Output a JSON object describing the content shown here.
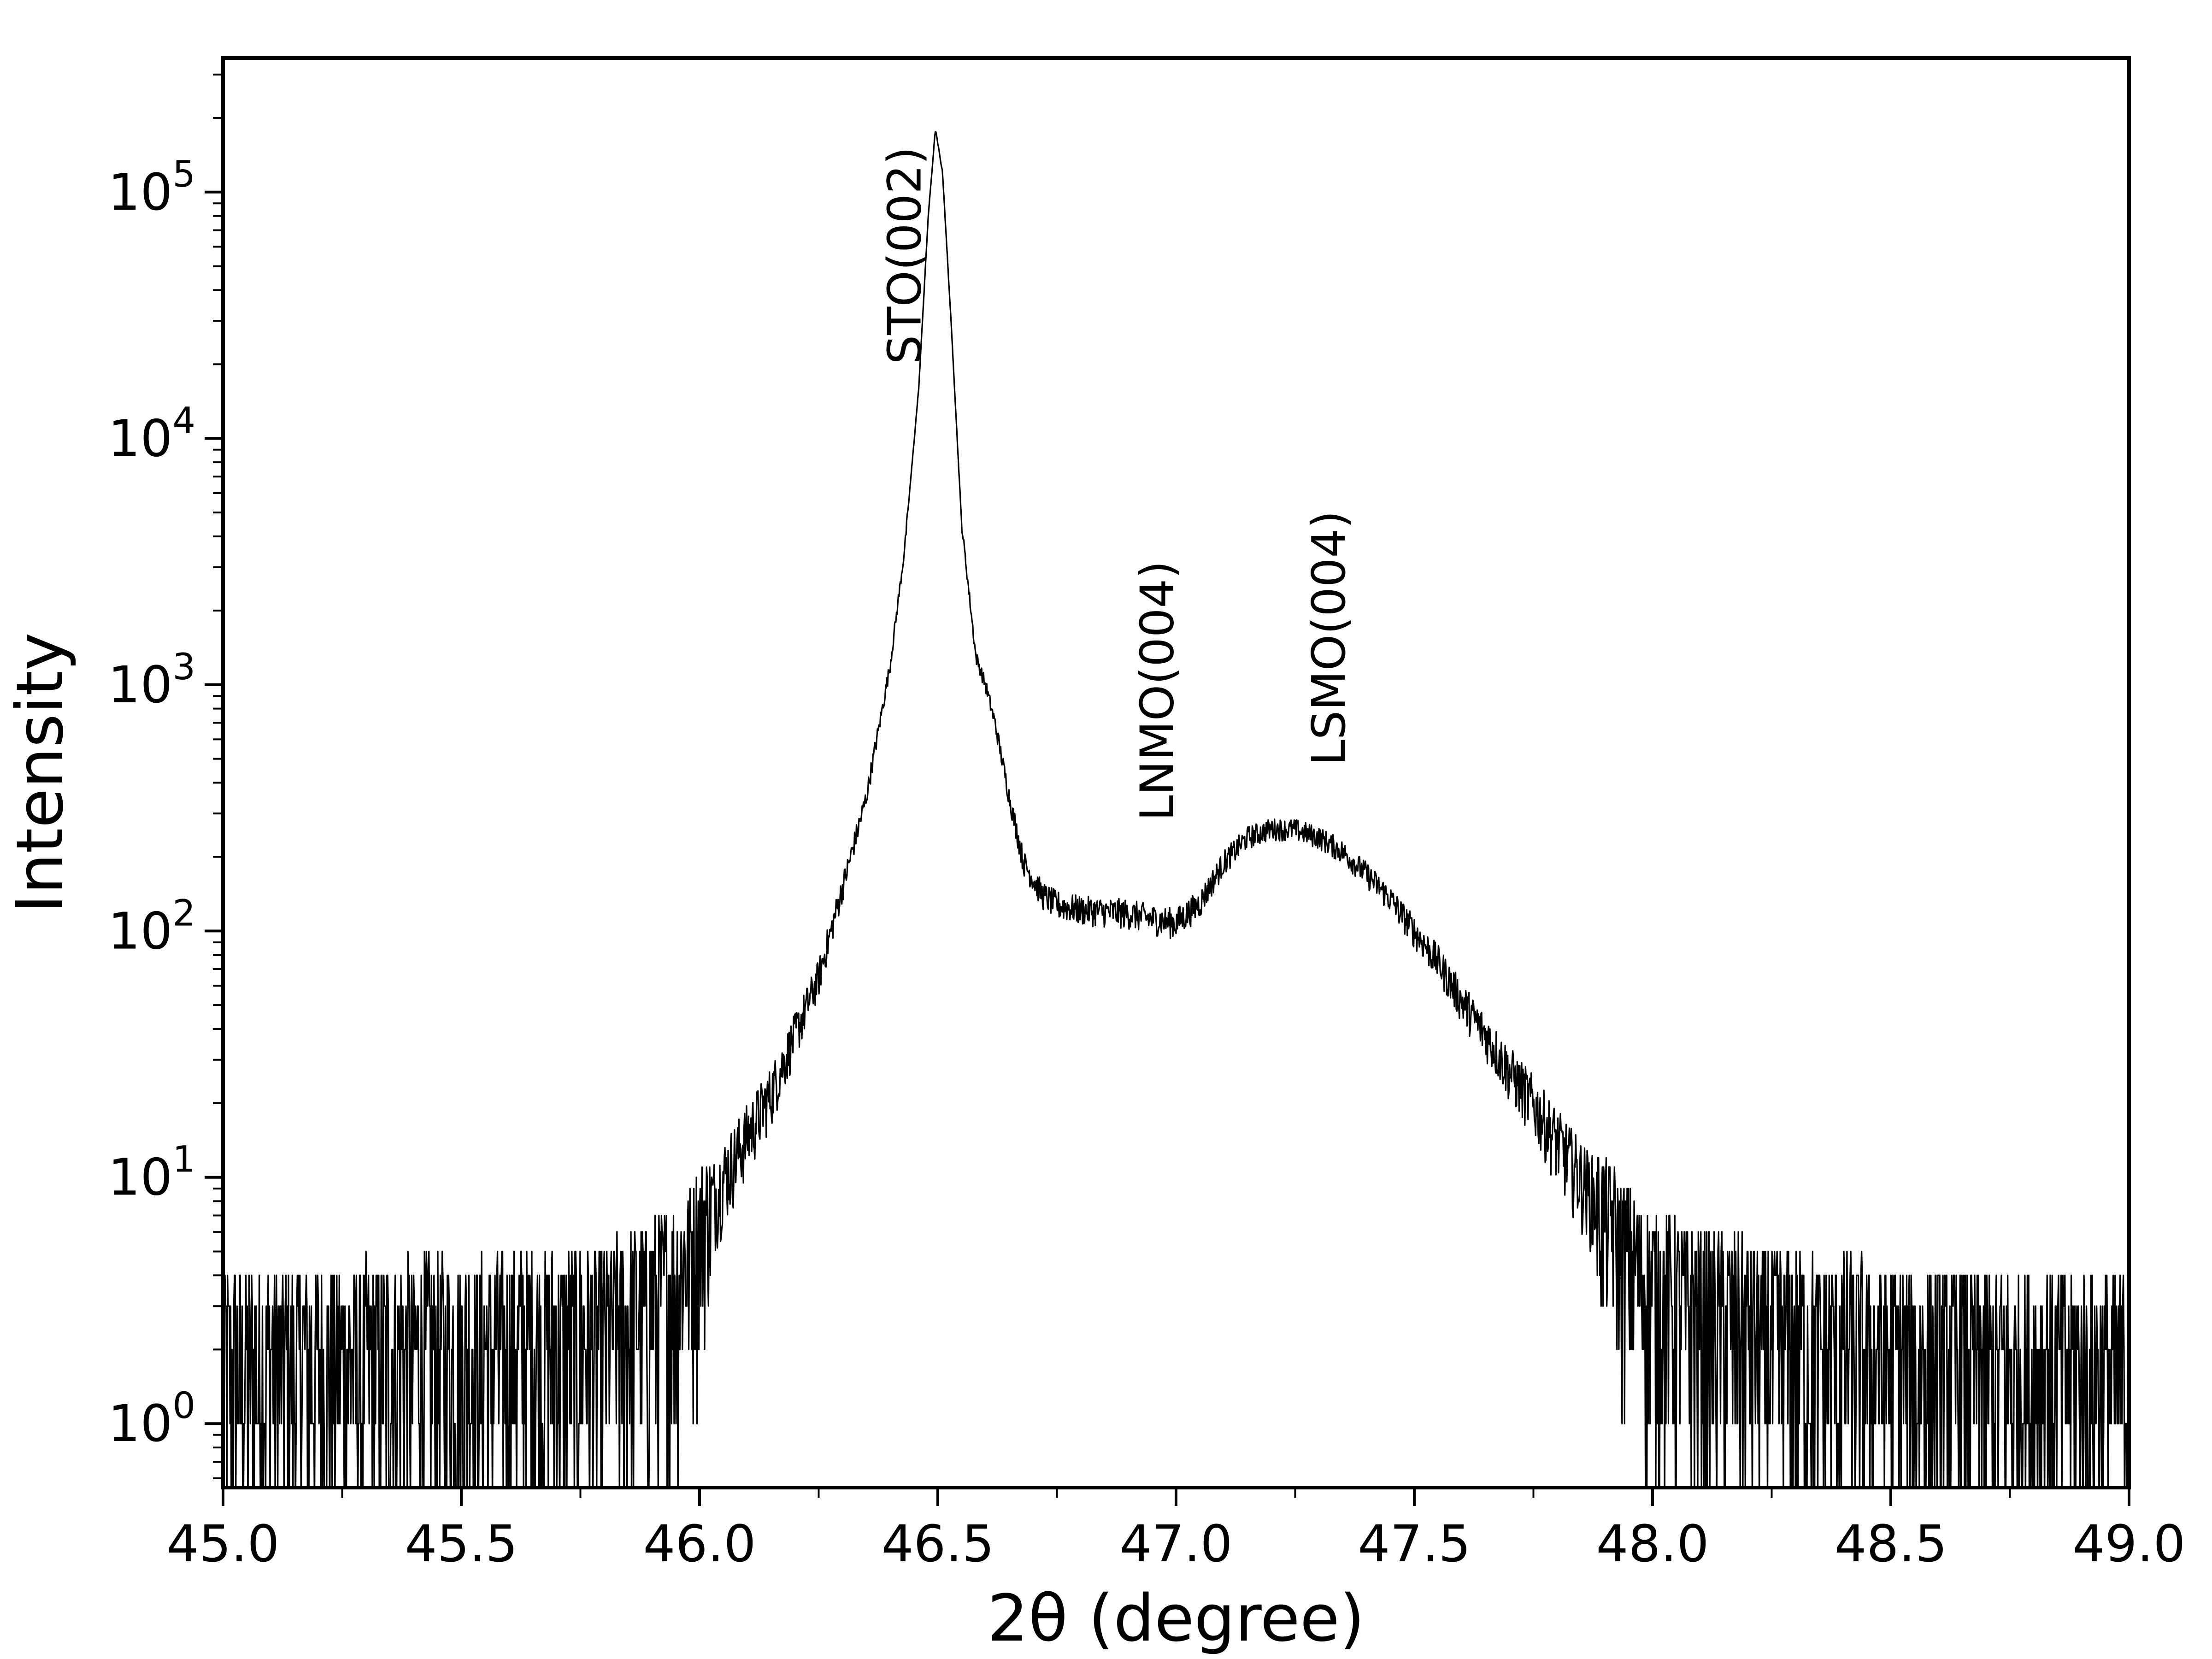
{
  "chart_data": {
    "type": "line",
    "xlabel": "2θ (degree)",
    "ylabel": "Intensity",
    "xlim": [
      45.0,
      49.0
    ],
    "ylim": [
      0.55,
      350000
    ],
    "yscale": "log",
    "grid": false,
    "x_ticks": [
      "45.0",
      "45.5",
      "46.0",
      "46.5",
      "47.0",
      "47.5",
      "48.0",
      "48.5",
      "49.0"
    ],
    "y_ticks": [
      {
        "base": "10",
        "exp": "0",
        "value": 1
      },
      {
        "base": "10",
        "exp": "1",
        "value": 10
      },
      {
        "base": "10",
        "exp": "2",
        "value": 100
      },
      {
        "base": "10",
        "exp": "3",
        "value": 1000
      },
      {
        "base": "10",
        "exp": "4",
        "value": 10000
      },
      {
        "base": "10",
        "exp": "5",
        "value": 100000
      }
    ],
    "annotations": [
      {
        "text": "STO(002)",
        "x": 46.43,
        "y": 20000
      },
      {
        "text": "LNMO(004)",
        "x": 46.96,
        "y": 280
      },
      {
        "text": "LSMO(004)",
        "x": 47.32,
        "y": 470
      }
    ],
    "series": [
      {
        "color": "#000000",
        "x": [
          45.0,
          45.5,
          45.8,
          45.95,
          46.05,
          46.15,
          46.25,
          46.3,
          46.35,
          46.4,
          46.43,
          46.46,
          46.48,
          46.495,
          46.51,
          46.53,
          46.55,
          46.58,
          46.6,
          46.62,
          46.65,
          46.68,
          46.72,
          46.75,
          46.8,
          46.85,
          46.9,
          46.95,
          47.0,
          47.05,
          47.1,
          47.15,
          47.2,
          47.25,
          47.3,
          47.35,
          47.4,
          47.45,
          47.5,
          47.55,
          47.6,
          47.65,
          47.7,
          47.75,
          47.8,
          47.85,
          47.9,
          47.95,
          48.0,
          48.3,
          48.6,
          49.0
        ],
        "y": [
          1.8,
          2.0,
          2.4,
          4.0,
          10,
          22,
          65,
          150,
          350,
          1200,
          3500,
          16000,
          80000,
          180000,
          120000,
          25000,
          4500,
          1300,
          1000,
          700,
          350,
          190,
          140,
          128,
          122,
          120,
          118,
          112,
          108,
          130,
          190,
          240,
          260,
          258,
          240,
          210,
          170,
          135,
          100,
          75,
          52,
          38,
          27,
          20,
          14,
          10,
          7.2,
          5.0,
          3.6,
          2.2,
          1.8,
          1.6
        ]
      }
    ]
  }
}
